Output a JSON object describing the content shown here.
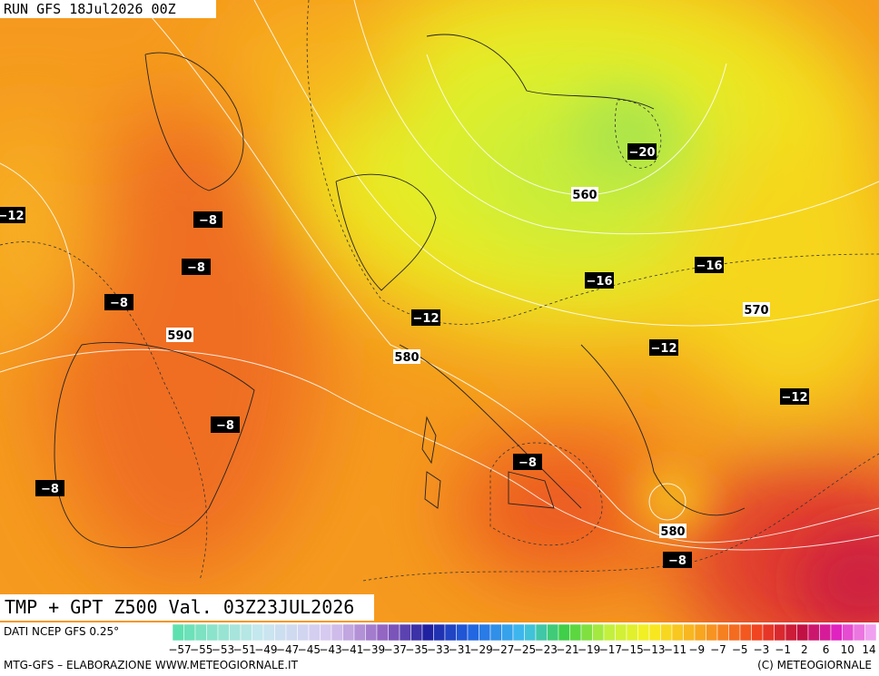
{
  "header": {
    "run": "RUN GFS 18Jul2026 00Z"
  },
  "map": {
    "title": "TMP + GPT Z500 Val. 03Z23JUL2026",
    "temperature_labels": [
      "−20",
      "−12",
      "−8",
      "−8",
      "−8",
      "−16",
      "−16",
      "−12",
      "−12",
      "−12",
      "−8",
      "−8",
      "−8",
      "−8"
    ],
    "geopotential_labels": [
      "560",
      "590",
      "570",
      "580",
      "580"
    ]
  },
  "footer": {
    "source": "DATI NCEP GFS 0.25°",
    "scale_labels": [
      "−57",
      "−55",
      "−53",
      "−51",
      "−49",
      "−47",
      "−45",
      "−43",
      "−41",
      "−39",
      "−37",
      "−35",
      "−33",
      "−31",
      "−29",
      "−27",
      "−25",
      "−23",
      "−21",
      "−19",
      "−17",
      "−15",
      "−13",
      "−11",
      "−9",
      "−7",
      "−5",
      "−3",
      "−1",
      "2",
      "6",
      "10",
      "14"
    ],
    "credit": "MTG-GFS – ELABORAZIONE WWW.METEOGIORNALE.IT",
    "copyright": "(C) METEOGIORNALE"
  }
}
